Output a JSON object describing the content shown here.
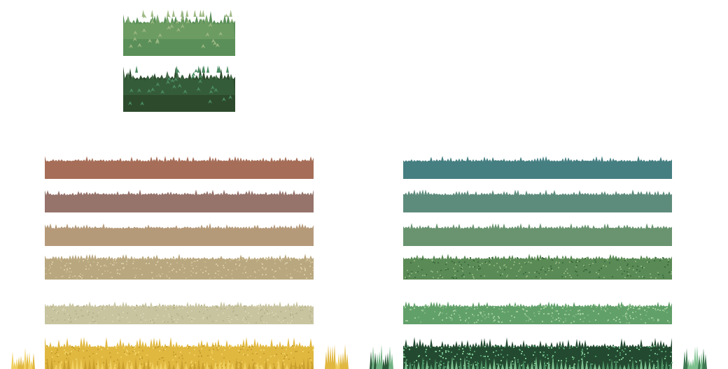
{
  "sheet": {
    "background": "#ffffff"
  },
  "bushes": [
    {
      "id": "bush-light",
      "name": "bush-tile-light",
      "colors": {
        "base": "#5b8f59",
        "mid": "#6e9d63",
        "highlight": "#9cb882"
      }
    },
    {
      "id": "bush-dark",
      "name": "bush-tile-dark",
      "colors": {
        "base": "#2d4a2d",
        "mid": "#365e3b",
        "highlight": "#4b8c63"
      }
    }
  ],
  "strips": {
    "left": [
      {
        "name": "grass-strip-brick",
        "style": "plain",
        "colors": {
          "base": "#a66e58",
          "mid": "#a66e58",
          "highlight": "#b8826a"
        }
      },
      {
        "name": "grass-strip-mauve",
        "style": "plain",
        "colors": {
          "base": "#96736b",
          "mid": "#96736b",
          "highlight": "#a8877d"
        }
      },
      {
        "name": "grass-strip-tan",
        "style": "plain",
        "colors": {
          "base": "#b59a7a",
          "mid": "#b59a7a",
          "highlight": "#c4ab8c"
        }
      },
      {
        "name": "grass-strip-sand",
        "style": "textured",
        "colors": {
          "base": "#b9a77f",
          "mid": "#c8b78f",
          "highlight": "#d6c9a3"
        }
      },
      {
        "name": "grass-strip-pale",
        "style": "textured",
        "colors": {
          "base": "#c8c4a0",
          "mid": "#d6d2b0",
          "highlight": "#b9b58f"
        }
      },
      {
        "name": "grass-strip-golden",
        "style": "tall",
        "colors": {
          "base": "#e0b840",
          "mid": "#c9a02e",
          "highlight": "#f0d060"
        }
      }
    ],
    "right": [
      {
        "name": "grass-strip-teal",
        "style": "plain",
        "colors": {
          "base": "#467f82",
          "mid": "#467f82",
          "highlight": "#5a9396"
        }
      },
      {
        "name": "grass-strip-sea-green",
        "style": "plain",
        "colors": {
          "base": "#5e8c7c",
          "mid": "#5e8c7c",
          "highlight": "#72a090"
        }
      },
      {
        "name": "grass-strip-sage",
        "style": "plain",
        "colors": {
          "base": "#69946f",
          "mid": "#69946f",
          "highlight": "#7da883"
        }
      },
      {
        "name": "grass-strip-moss",
        "style": "textured",
        "colors": {
          "base": "#5a8a55",
          "mid": "#3f6e40",
          "highlight": "#86b07a"
        }
      },
      {
        "name": "grass-strip-meadow",
        "style": "textured",
        "colors": {
          "base": "#62a06a",
          "mid": "#7cb47e",
          "highlight": "#9ccc98"
        }
      },
      {
        "name": "grass-strip-forest",
        "style": "tall",
        "colors": {
          "base": "#234a30",
          "mid": "#4e9366",
          "highlight": "#7cc08e"
        }
      }
    ]
  },
  "fragments": [
    {
      "id": "frag-yellow-left",
      "name": "grass-tuft-golden-left",
      "colors": {
        "base": "#e0b840",
        "highlight": "#f0d060"
      }
    },
    {
      "id": "frag-yellow-right",
      "name": "grass-tuft-golden-right",
      "colors": {
        "base": "#e0b840",
        "highlight": "#f0d060"
      }
    },
    {
      "id": "frag-green-left",
      "name": "grass-tuft-forest-left",
      "colors": {
        "base": "#2d5a3a",
        "highlight": "#6fb182"
      }
    },
    {
      "id": "frag-green-right",
      "name": "grass-tuft-forest-right",
      "colors": {
        "base": "#3f7a52",
        "highlight": "#7cc08e"
      }
    }
  ]
}
